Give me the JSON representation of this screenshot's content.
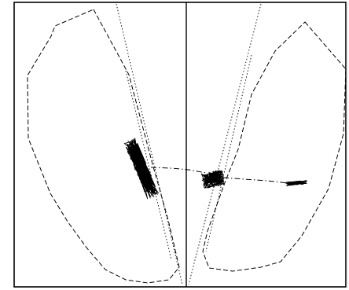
{
  "figure": {
    "background": "#ffffff",
    "ink_color": "#000000",
    "frame_color": "#000000",
    "left_panel": {
      "boundary_style": "dashed",
      "guide_style": "dotted",
      "has_scatter_cluster": true
    },
    "right_panel": {
      "boundary_style": "dashed",
      "guide_style": "dotted",
      "has_scatter_cluster": true,
      "has_small_cluster": true
    },
    "connector_style": "dash-dot"
  }
}
